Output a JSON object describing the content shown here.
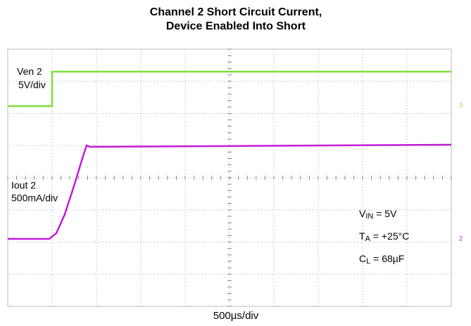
{
  "title": [
    "Channel 2 Short Circuit Current,",
    "Device Enabled Into Short"
  ],
  "traces": [
    {
      "name": "Ven 2",
      "scale": "5V/div",
      "marker": "3"
    },
    {
      "name": "Iout 2",
      "scale": "500mA/div",
      "marker": "2"
    }
  ],
  "conditions": [
    {
      "main": "V",
      "sub": "IN",
      "rest": " = 5V"
    },
    {
      "main": "T",
      "sub": "A",
      "rest": " = +25°C"
    },
    {
      "main": "C",
      "sub": "L",
      "rest": " = 68µF"
    }
  ],
  "timebase": "500µs/div"
}
